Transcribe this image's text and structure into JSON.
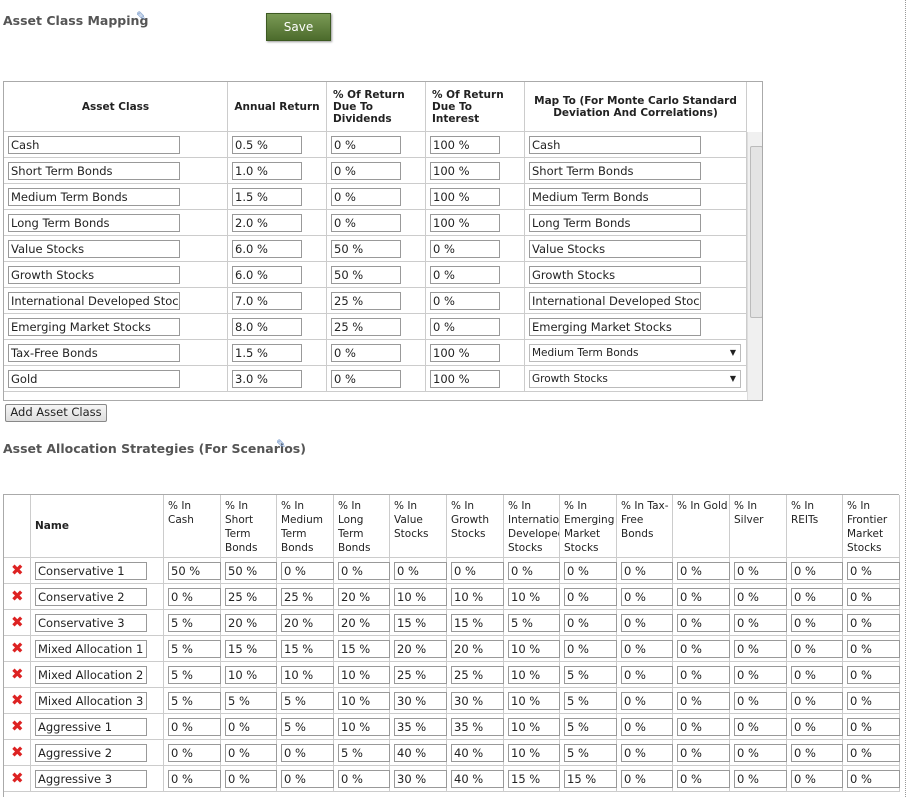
{
  "mapping": {
    "title": "Asset Class Mapping",
    "save_button": "Save",
    "headers": [
      "Asset Class",
      "Annual Return",
      "% Of Return Due To Dividends",
      "% Of Return Due To Interest",
      "Map To (For Monte Carlo Standard Deviation And Correlations)"
    ],
    "rows": [
      {
        "asset_class": "Cash",
        "annual_return": "0.5 %",
        "dividends": "0 %",
        "interest": "100 %",
        "map_to": "Cash",
        "dropdown": false
      },
      {
        "asset_class": "Short Term Bonds",
        "annual_return": "1.0 %",
        "dividends": "0 %",
        "interest": "100 %",
        "map_to": "Short Term Bonds",
        "dropdown": false
      },
      {
        "asset_class": "Medium Term Bonds",
        "annual_return": "1.5 %",
        "dividends": "0 %",
        "interest": "100 %",
        "map_to": "Medium Term Bonds",
        "dropdown": false
      },
      {
        "asset_class": "Long Term Bonds",
        "annual_return": "2.0 %",
        "dividends": "0 %",
        "interest": "100 %",
        "map_to": "Long Term Bonds",
        "dropdown": false
      },
      {
        "asset_class": "Value Stocks",
        "annual_return": "6.0 %",
        "dividends": "50 %",
        "interest": "0 %",
        "map_to": "Value Stocks",
        "dropdown": false
      },
      {
        "asset_class": "Growth Stocks",
        "annual_return": "6.0 %",
        "dividends": "50 %",
        "interest": "0 %",
        "map_to": "Growth Stocks",
        "dropdown": false
      },
      {
        "asset_class": "International Developed Stocks",
        "annual_return": "7.0 %",
        "dividends": "25 %",
        "interest": "0 %",
        "map_to": "International Developed Stocks",
        "dropdown": false
      },
      {
        "asset_class": "Emerging Market Stocks",
        "annual_return": "8.0 %",
        "dividends": "25 %",
        "interest": "0 %",
        "map_to": "Emerging Market Stocks",
        "dropdown": false
      },
      {
        "asset_class": "Tax-Free Bonds",
        "annual_return": "1.5 %",
        "dividends": "0 %",
        "interest": "100 %",
        "map_to": "Medium Term Bonds",
        "dropdown": true
      },
      {
        "asset_class": "Gold",
        "annual_return": "3.0 %",
        "dividends": "0 %",
        "interest": "100 %",
        "map_to": "Growth Stocks",
        "dropdown": true
      }
    ],
    "add_button": "Add Asset Class"
  },
  "strategies": {
    "title": "Asset Allocation Strategies (For Scenarios)",
    "headers": [
      "Name",
      "% In Cash",
      "% In Short Term Bonds",
      "% In Medium Term Bonds",
      "% In Long Term Bonds",
      "% In Value Stocks",
      "% In Growth Stocks",
      "% In International Developed Stocks",
      "% In Emerging Market Stocks",
      "% In Tax-Free Bonds",
      "% In Gold",
      "% In Silver",
      "% In REITs",
      "% In Frontier Market Stocks"
    ],
    "rows": [
      {
        "name": "Conservative 1",
        "allocations": [
          "50 %",
          "50 %",
          "0 %",
          "0 %",
          "0 %",
          "0 %",
          "0 %",
          "0 %",
          "0 %",
          "0 %",
          "0 %",
          "0 %",
          "0 %"
        ]
      },
      {
        "name": "Conservative 2",
        "allocations": [
          "0 %",
          "25 %",
          "25 %",
          "20 %",
          "10 %",
          "10 %",
          "10 %",
          "0 %",
          "0 %",
          "0 %",
          "0 %",
          "0 %",
          "0 %"
        ]
      },
      {
        "name": "Conservative 3",
        "allocations": [
          "5 %",
          "20 %",
          "20 %",
          "20 %",
          "15 %",
          "15 %",
          "5 %",
          "0 %",
          "0 %",
          "0 %",
          "0 %",
          "0 %",
          "0 %"
        ]
      },
      {
        "name": "Mixed Allocation 1",
        "allocations": [
          "5 %",
          "15 %",
          "15 %",
          "15 %",
          "20 %",
          "20 %",
          "10 %",
          "0 %",
          "0 %",
          "0 %",
          "0 %",
          "0 %",
          "0 %"
        ]
      },
      {
        "name": "Mixed Allocation 2",
        "allocations": [
          "5 %",
          "10 %",
          "10 %",
          "10 %",
          "25 %",
          "25 %",
          "10 %",
          "5 %",
          "0 %",
          "0 %",
          "0 %",
          "0 %",
          "0 %"
        ]
      },
      {
        "name": "Mixed Allocation 3",
        "allocations": [
          "5 %",
          "5 %",
          "5 %",
          "10 %",
          "30 %",
          "30 %",
          "10 %",
          "5 %",
          "0 %",
          "0 %",
          "0 %",
          "0 %",
          "0 %"
        ]
      },
      {
        "name": "Aggressive 1",
        "allocations": [
          "0 %",
          "0 %",
          "5 %",
          "10 %",
          "35 %",
          "35 %",
          "10 %",
          "5 %",
          "0 %",
          "0 %",
          "0 %",
          "0 %",
          "0 %"
        ]
      },
      {
        "name": "Aggressive 2",
        "allocations": [
          "0 %",
          "0 %",
          "0 %",
          "5 %",
          "40 %",
          "40 %",
          "10 %",
          "5 %",
          "0 %",
          "0 %",
          "0 %",
          "0 %",
          "0 %"
        ]
      },
      {
        "name": "Aggressive 3",
        "allocations": [
          "0 %",
          "0 %",
          "0 %",
          "0 %",
          "30 %",
          "40 %",
          "15 %",
          "15 %",
          "0 %",
          "0 %",
          "0 %",
          "0 %",
          "0 %"
        ]
      }
    ]
  }
}
